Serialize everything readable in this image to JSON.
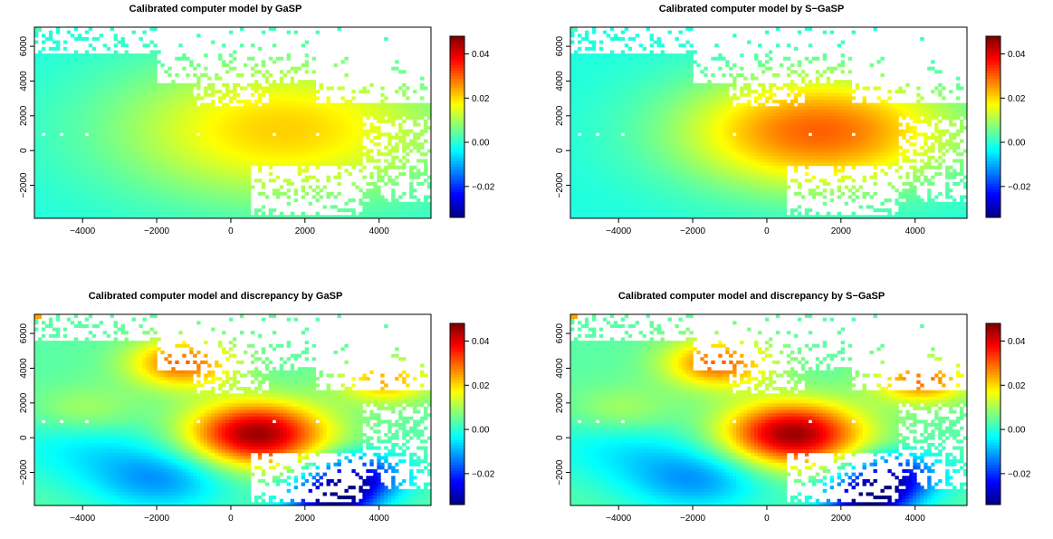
{
  "figure": {
    "panels": [
      {
        "title": "Calibrated computer model by GaSP"
      },
      {
        "title": "Calibrated computer model by S−GaSP"
      },
      {
        "title": "Calibrated computer model and discrepancy by GaSP"
      },
      {
        "title": "Calibrated computer model and discrepancy by S−GaSP"
      }
    ],
    "x_tick_labels": [
      "−4000",
      "−2000",
      "0",
      "2000",
      "4000"
    ],
    "y_tick_labels": [
      "−2000",
      "0",
      "2000",
      "4000",
      "6000"
    ],
    "colorbar_tick_labels": [
      "−0.02",
      "0.00",
      "0.02",
      "0.04"
    ]
  },
  "chart_data": [
    {
      "type": "heatmap",
      "title": "Calibrated computer model by GaSP",
      "xlim": [
        -5300,
        5400
      ],
      "ylim": [
        -3900,
        7100
      ],
      "x_ticks": [
        -4000,
        -2000,
        0,
        2000,
        4000
      ],
      "y_ticks": [
        -2000,
        0,
        2000,
        4000,
        6000
      ],
      "color_scale": {
        "range": [
          -0.034,
          0.048
        ],
        "ticks": [
          -0.02,
          0.0,
          0.02,
          0.04
        ],
        "palette": "jet"
      },
      "field": {
        "kind": "radial",
        "center": [
          1400,
          1200
        ],
        "peak": 0.021,
        "background": -0.001,
        "radius": 3200
      }
    },
    {
      "type": "heatmap",
      "title": "Calibrated computer model by S−GaSP",
      "xlim": [
        -5300,
        5400
      ],
      "ylim": [
        -3900,
        7100
      ],
      "x_ticks": [
        -4000,
        -2000,
        0,
        2000,
        4000
      ],
      "y_ticks": [
        -2000,
        0,
        2000,
        4000,
        6000
      ],
      "color_scale": {
        "range": [
          -0.034,
          0.048
        ],
        "ticks": [
          -0.02,
          0.0,
          0.02,
          0.04
        ],
        "palette": "jet"
      },
      "field": {
        "kind": "radial",
        "center": [
          1400,
          1100
        ],
        "peak": 0.03,
        "background": -0.001,
        "radius": 2600
      }
    },
    {
      "type": "heatmap",
      "title": "Calibrated computer model and discrepancy by GaSP",
      "xlim": [
        -5300,
        5400
      ],
      "ylim": [
        -3900,
        7100
      ],
      "x_ticks": [
        -4000,
        -2000,
        0,
        2000,
        4000
      ],
      "y_ticks": [
        -2000,
        0,
        2000,
        4000,
        6000
      ],
      "color_scale": {
        "range": [
          -0.034,
          0.048
        ],
        "ticks": [
          -0.02,
          0.0,
          0.02,
          0.04
        ],
        "palette": "jet"
      },
      "field": {
        "kind": "blobs",
        "base": 0.004,
        "blobs": [
          {
            "center": [
              700,
              200
            ],
            "amp": 0.042,
            "radius": 1300
          },
          {
            "center": [
              -1300,
              4300
            ],
            "amp": 0.026,
            "radius": 1000
          },
          {
            "center": [
              -1900,
              -2400
            ],
            "amp": -0.015,
            "radius": 1300
          },
          {
            "center": [
              -4000,
              -500
            ],
            "amp": -0.008,
            "radius": 1500
          },
          {
            "center": [
              3400,
              -2200
            ],
            "amp": -0.03,
            "radius": 900
          },
          {
            "center": [
              2700,
              -3600
            ],
            "amp": -0.035,
            "radius": 800
          },
          {
            "center": [
              4200,
              3300
            ],
            "amp": 0.02,
            "radius": 900
          },
          {
            "center": [
              -3900,
              1500
            ],
            "amp": 0.008,
            "radius": 1000
          }
        ]
      }
    },
    {
      "type": "heatmap",
      "title": "Calibrated computer model and discrepancy by S−GaSP",
      "xlim": [
        -5300,
        5400
      ],
      "ylim": [
        -3900,
        7100
      ],
      "x_ticks": [
        -4000,
        -2000,
        0,
        2000,
        4000
      ],
      "y_ticks": [
        -2000,
        0,
        2000,
        4000,
        6000
      ],
      "color_scale": {
        "range": [
          -0.034,
          0.048
        ],
        "ticks": [
          -0.02,
          0.0,
          0.02,
          0.04
        ],
        "palette": "jet"
      },
      "field": {
        "kind": "blobs",
        "base": 0.004,
        "blobs": [
          {
            "center": [
              700,
              200
            ],
            "amp": 0.042,
            "radius": 1300
          },
          {
            "center": [
              -1300,
              4300
            ],
            "amp": 0.026,
            "radius": 1000
          },
          {
            "center": [
              -1900,
              -2400
            ],
            "amp": -0.015,
            "radius": 1300
          },
          {
            "center": [
              -4000,
              -500
            ],
            "amp": -0.008,
            "radius": 1500
          },
          {
            "center": [
              3400,
              -2200
            ],
            "amp": -0.03,
            "radius": 900
          },
          {
            "center": [
              2700,
              -3600
            ],
            "amp": -0.035,
            "radius": 800
          },
          {
            "center": [
              4200,
              3300
            ],
            "amp": 0.025,
            "radius": 900
          },
          {
            "center": [
              -3900,
              1500
            ],
            "amp": 0.008,
            "radius": 1000
          }
        ]
      }
    }
  ]
}
